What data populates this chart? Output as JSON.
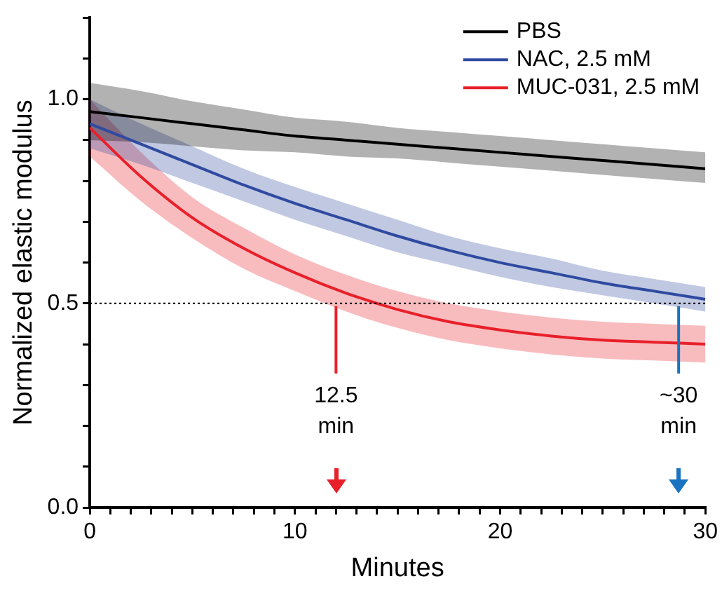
{
  "chart_data": {
    "type": "line",
    "xlabel": "Minutes",
    "ylabel": "Normalized elastic modulus",
    "x": [
      0,
      2.5,
      5,
      7.5,
      10,
      12.5,
      15,
      17.5,
      20,
      22.5,
      25,
      27.5,
      30
    ],
    "series": [
      {
        "name": "PBS",
        "color": "#000000",
        "values": [
          0.97,
          0.955,
          0.94,
          0.925,
          0.91,
          0.9,
          0.89,
          0.88,
          0.87,
          0.86,
          0.85,
          0.84,
          0.83
        ],
        "lower": [
          0.9,
          0.895,
          0.885,
          0.875,
          0.87,
          0.86,
          0.855,
          0.845,
          0.835,
          0.825,
          0.815,
          0.805,
          0.795
        ],
        "upper": [
          1.04,
          1.02,
          0.995,
          0.975,
          0.955,
          0.945,
          0.93,
          0.92,
          0.91,
          0.9,
          0.89,
          0.88,
          0.87
        ]
      },
      {
        "name": "NAC, 2.5 mM",
        "color": "#2f4aa0",
        "values": [
          0.94,
          0.89,
          0.84,
          0.79,
          0.745,
          0.705,
          0.665,
          0.63,
          0.6,
          0.575,
          0.55,
          0.53,
          0.51
        ],
        "lower": [
          0.88,
          0.84,
          0.795,
          0.75,
          0.705,
          0.665,
          0.625,
          0.595,
          0.565,
          0.54,
          0.52,
          0.5,
          0.48
        ],
        "upper": [
          1.0,
          0.94,
          0.885,
          0.83,
          0.785,
          0.745,
          0.705,
          0.665,
          0.635,
          0.61,
          0.58,
          0.56,
          0.54
        ]
      },
      {
        "name": "MUC-031, 2.5 mM",
        "color": "#e8202a",
        "values": [
          0.93,
          0.81,
          0.71,
          0.635,
          0.575,
          0.525,
          0.485,
          0.455,
          0.435,
          0.42,
          0.41,
          0.405,
          0.4
        ],
        "lower": [
          0.86,
          0.75,
          0.66,
          0.585,
          0.53,
          0.48,
          0.44,
          0.41,
          0.39,
          0.375,
          0.365,
          0.36,
          0.355
        ],
        "upper": [
          1.0,
          0.87,
          0.76,
          0.685,
          0.62,
          0.57,
          0.53,
          0.5,
          0.48,
          0.465,
          0.455,
          0.45,
          0.445
        ]
      }
    ],
    "xlim": [
      0,
      30
    ],
    "xticks": [
      0,
      {
        "value": 1,
        "label": null
      },
      {
        "value": 2,
        "label": null
      },
      {
        "value": 3,
        "label": null
      },
      {
        "value": 4,
        "label": null
      },
      {
        "value": 5,
        "label": null
      },
      {
        "value": 6,
        "label": null
      },
      {
        "value": 7,
        "label": null
      },
      {
        "value": 8,
        "label": null
      },
      {
        "value": 9,
        "label": null
      },
      10,
      {
        "value": 11,
        "label": null
      },
      {
        "value": 12,
        "label": null
      },
      {
        "value": 13,
        "label": null
      },
      {
        "value": 14,
        "label": null
      },
      {
        "value": 15,
        "label": null
      },
      {
        "value": 16,
        "label": null
      },
      {
        "value": 17,
        "label": null
      },
      {
        "value": 18,
        "label": null
      },
      {
        "value": 19,
        "label": null
      },
      20,
      {
        "value": 21,
        "label": null
      },
      {
        "value": 22,
        "label": null
      },
      {
        "value": 23,
        "label": null
      },
      {
        "value": 24,
        "label": null
      },
      {
        "value": 25,
        "label": null
      },
      {
        "value": 26,
        "label": null
      },
      {
        "value": 27,
        "label": null
      },
      {
        "value": 28,
        "label": null
      },
      {
        "value": 29,
        "label": null
      },
      30
    ],
    "ylim": [
      0,
      1.2
    ],
    "yticks": [
      {
        "value": 0,
        "label": "0.0"
      },
      {
        "value": 0.1,
        "label": null
      },
      {
        "value": 0.2,
        "label": null
      },
      {
        "value": 0.3,
        "label": null
      },
      {
        "value": 0.4,
        "label": null
      },
      {
        "value": 0.5,
        "label": "0.5"
      },
      {
        "value": 0.6,
        "label": null
      },
      {
        "value": 0.7,
        "label": null
      },
      {
        "value": 0.8,
        "label": null
      },
      {
        "value": 0.9,
        "label": null
      },
      {
        "value": 1,
        "label": "1.0"
      },
      {
        "value": 1.1,
        "label": null
      },
      {
        "value": 1.2,
        "label": null
      }
    ],
    "ref_lines": [
      {
        "axis": "y",
        "value": 0.5,
        "color": "#000000",
        "line_style": "dotted"
      }
    ],
    "annotations": [
      {
        "text": "12.5 min",
        "x": 12,
        "y": 0.5
      },
      {
        "text": "~30 min",
        "x": 28.7,
        "y": 0.5
      }
    ],
    "grid": false,
    "legend": "top right",
    "marker": "none",
    "line_style": "solid"
  }
}
